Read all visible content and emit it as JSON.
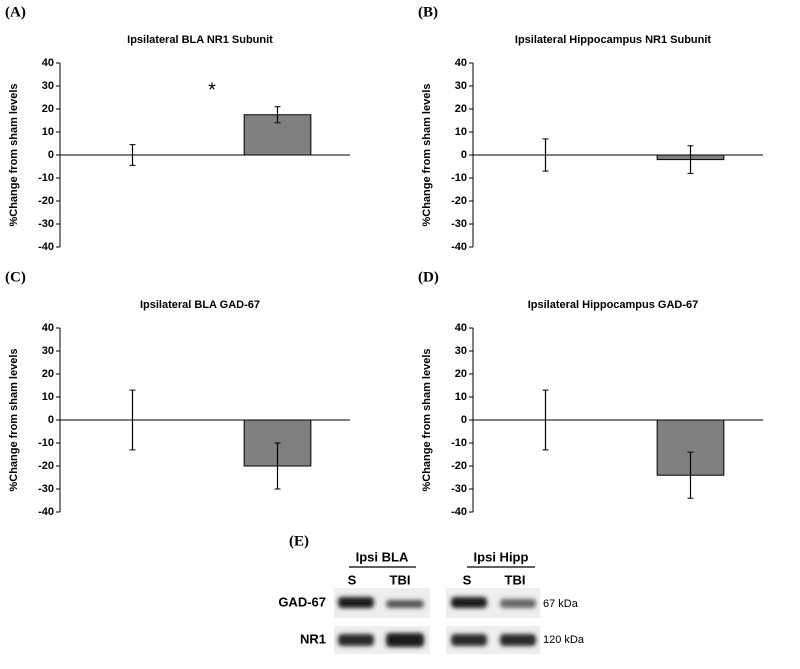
{
  "chart_data": [
    {
      "type": "bar",
      "panel": "(A)",
      "title": "Ipsilateral BLA NR1 Subunit",
      "ylabel": "%Change from sham levels",
      "categories": [
        null,
        null
      ],
      "values": [
        0,
        17.5
      ],
      "errors": [
        4.5,
        3.5
      ],
      "color": "#808080",
      "ylim": [
        -40,
        40
      ],
      "yticks": [
        -40,
        -30,
        -20,
        -10,
        0,
        10,
        20,
        30,
        40
      ],
      "annotation": "*"
    },
    {
      "type": "bar",
      "panel": "(B)",
      "title": "Ipsilateral Hippocampus NR1 Subunit",
      "ylabel": "%Change from sham levels",
      "categories": [
        null,
        null
      ],
      "values": [
        0,
        -2
      ],
      "errors": [
        7,
        6
      ],
      "color": "#808080",
      "ylim": [
        -40,
        40
      ],
      "yticks": [
        -40,
        -30,
        -20,
        -10,
        0,
        10,
        20,
        30,
        40
      ]
    },
    {
      "type": "bar",
      "panel": "(C)",
      "title": "Ipsilateral BLA GAD-67",
      "ylabel": "%Change from sham levels",
      "categories": [
        null,
        null
      ],
      "values": [
        0,
        -20
      ],
      "errors": [
        13,
        10
      ],
      "color": "#808080",
      "ylim": [
        -40,
        40
      ],
      "yticks": [
        -40,
        -30,
        -20,
        -10,
        0,
        10,
        20,
        30,
        40
      ]
    },
    {
      "type": "bar",
      "panel": "(D)",
      "title": "Ipsilateral Hippocampus GAD-67",
      "ylabel": "%Change from sham levels",
      "categories": [
        null,
        null
      ],
      "values": [
        0,
        -24
      ],
      "errors": [
        13,
        10
      ],
      "color": "#808080",
      "ylim": [
        -40,
        40
      ],
      "yticks": [
        -40,
        -30,
        -20,
        -10,
        0,
        10,
        20,
        30,
        40
      ]
    }
  ],
  "blot": {
    "panel": "(E)",
    "groups": [
      "Ipsi BLA",
      "Ipsi Hipp"
    ],
    "lanes": [
      "S",
      "TBI",
      "S",
      "TBI"
    ],
    "rows": [
      "GAD-67",
      "NR1"
    ],
    "sizes": [
      "67 kDa",
      "120 kDa"
    ]
  }
}
